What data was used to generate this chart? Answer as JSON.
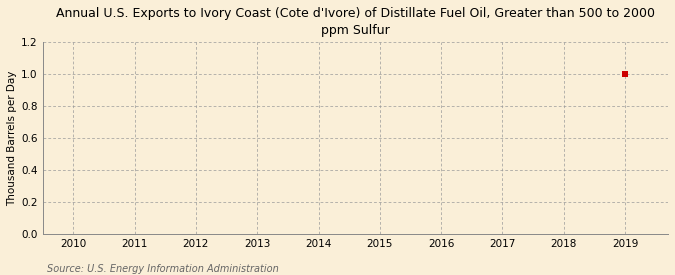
{
  "title": "Annual U.S. Exports to Ivory Coast (Cote d'Ivore) of Distillate Fuel Oil, Greater than 500 to 2000\nppm Sulfur",
  "ylabel": "Thousand Barrels per Day",
  "source": "Source: U.S. Energy Information Administration",
  "background_color": "#faefd8",
  "plot_bg_color": "#faefd8",
  "data_x": [
    2019
  ],
  "data_y": [
    1.0
  ],
  "marker_color": "#cc0000",
  "marker_size": 4,
  "xlim": [
    2009.5,
    2019.7
  ],
  "ylim": [
    0.0,
    1.2
  ],
  "xticks": [
    2010,
    2011,
    2012,
    2013,
    2014,
    2015,
    2016,
    2017,
    2018,
    2019
  ],
  "yticks": [
    0.0,
    0.2,
    0.4,
    0.6,
    0.8,
    1.0,
    1.2
  ],
  "title_fontsize": 9,
  "axis_fontsize": 7.5,
  "tick_fontsize": 7.5,
  "source_fontsize": 7,
  "grid_color": "#999999",
  "grid_linewidth": 0.5
}
